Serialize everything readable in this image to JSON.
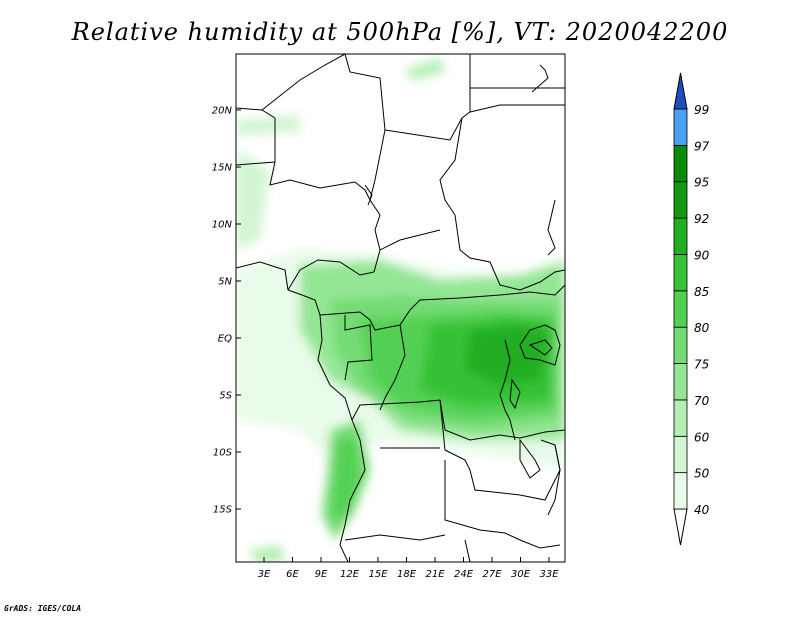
{
  "title": "Relative humidity at 500hPa [%], VT: 2020042200",
  "credit": "GrADS: IGES/COLA",
  "map": {
    "lat_labels": [
      "20N",
      "15N",
      "10N",
      "5N",
      "EQ",
      "5S",
      "10S",
      "15S"
    ],
    "lon_labels": [
      "3E",
      "6E",
      "9E",
      "12E",
      "15E",
      "18E",
      "21E",
      "24E",
      "27E",
      "30E",
      "33E"
    ]
  },
  "colorbar": {
    "labels": [
      "40",
      "50",
      "60",
      "70",
      "75",
      "80",
      "85",
      "90",
      "92",
      "95",
      "97",
      "99"
    ],
    "colors": [
      "#e9fbe9",
      "#d2f5d2",
      "#b4eeb4",
      "#94e694",
      "#74dc74",
      "#52d052",
      "#36c136",
      "#22ae22",
      "#139913",
      "#0a8a0a",
      "#4aa3f0",
      "#1e6fd9",
      "#1a4fc0"
    ]
  }
}
